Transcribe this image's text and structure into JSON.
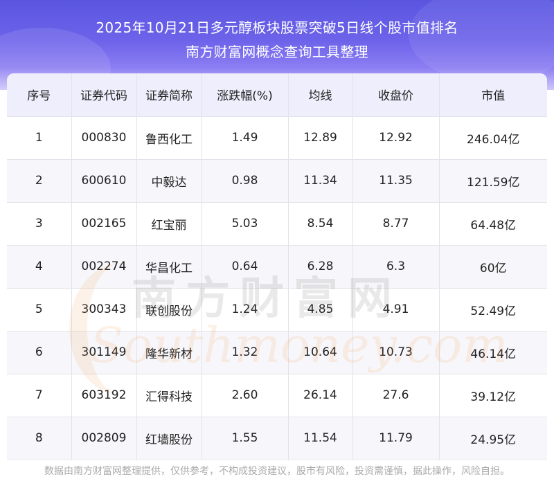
{
  "header": {
    "title_line1": "2025年10月21日多元醇板块股票突破5日线个股市值排名",
    "title_line2": "南方财富网概念查询工具整理"
  },
  "table": {
    "columns": [
      "序号",
      "证券代码",
      "证券简称",
      "涨跌幅(%)",
      "均线",
      "收盘价",
      "市值"
    ],
    "rows": [
      [
        "1",
        "000830",
        "鲁西化工",
        "1.49",
        "12.89",
        "12.92",
        "246.04亿"
      ],
      [
        "2",
        "600610",
        "中毅达",
        "0.98",
        "11.34",
        "11.35",
        "121.59亿"
      ],
      [
        "3",
        "002165",
        "红宝丽",
        "5.03",
        "8.54",
        "8.77",
        "64.48亿"
      ],
      [
        "4",
        "002274",
        "华昌化工",
        "0.64",
        "6.28",
        "6.3",
        "60亿"
      ],
      [
        "5",
        "300343",
        "联创股份",
        "1.24",
        "4.85",
        "4.91",
        "52.49亿"
      ],
      [
        "6",
        "301149",
        "隆华新材",
        "1.32",
        "10.64",
        "10.73",
        "46.14亿"
      ],
      [
        "7",
        "603192",
        "汇得科技",
        "2.60",
        "26.14",
        "27.6",
        "39.12亿"
      ],
      [
        "8",
        "002809",
        "红墙股份",
        "1.55",
        "11.54",
        "11.79",
        "24.95亿"
      ]
    ]
  },
  "watermark": {
    "cn": "南方财富网",
    "en": "Southmoney.com"
  },
  "footer": {
    "disclaimer": "数据由南方财富网整理提供，仅供参考，不构成投资建议，股市有风险，投资需谨慎，据此操作，风险自担。"
  }
}
